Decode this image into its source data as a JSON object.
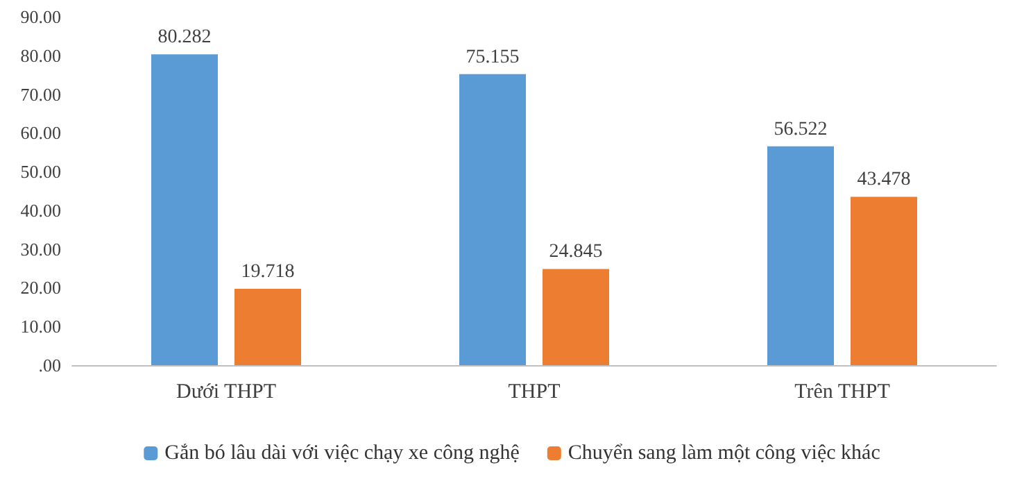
{
  "chart_data": {
    "type": "bar",
    "categories": [
      "Dưới THPT",
      "THPT",
      "Trên THPT"
    ],
    "series": [
      {
        "name": "Gắn bó lâu dài với việc chạy xe công nghệ",
        "color": "#5b9bd5",
        "values": [
          80.282,
          75.155,
          56.522
        ]
      },
      {
        "name": "Chuyển sang làm một công việc khác",
        "color": "#ed7d31",
        "values": [
          19.718,
          24.845,
          43.478
        ]
      }
    ],
    "ylim": [
      0,
      90
    ],
    "yticks": [
      {
        "value": 0,
        "label": ".00"
      },
      {
        "value": 10,
        "label": "10.00"
      },
      {
        "value": 20,
        "label": "20.00"
      },
      {
        "value": 30,
        "label": "30.00"
      },
      {
        "value": 40,
        "label": "40.00"
      },
      {
        "value": 50,
        "label": "50.00"
      },
      {
        "value": 60,
        "label": "60.00"
      },
      {
        "value": 70,
        "label": "70.00"
      },
      {
        "value": 80,
        "label": "80.00"
      },
      {
        "value": 90,
        "label": "90.00"
      }
    ],
    "data_labels": true,
    "grid": false,
    "legend": "bottom"
  }
}
